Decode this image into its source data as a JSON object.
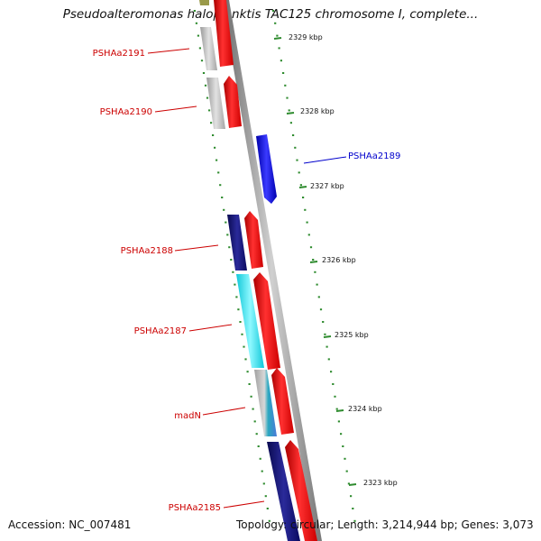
{
  "title": "Pseudoalteromonas haloplanktis TAC125 chromosome I, complete...",
  "accession": "Accession: NC_007481",
  "topology": "Topology: circular; Length: 3,214,944 bp; Genes: 3,073",
  "colors": {
    "label_red": "#cc0000",
    "label_blue": "#0000cc",
    "tick_green": "#2e8b2e",
    "backbone": "#8c8c8c",
    "forward_gene": "#ff1010",
    "reverse_blue": "#1010ee",
    "gray_gene": "#bdbdbd",
    "navy_gene": "#12127a",
    "cyan_gene": "#20e6f0"
  },
  "genes": [
    {
      "label": "PSHAa2191",
      "strand": "reverse",
      "color": "gray"
    },
    {
      "label": "PSHAa2190",
      "strand": "reverse",
      "color": "gray"
    },
    {
      "label": "PSHAa2189",
      "strand": "forward",
      "color": "blue"
    },
    {
      "label": "PSHAa2188",
      "strand": "reverse",
      "color": "navy"
    },
    {
      "label": "PSHAa2187",
      "strand": "reverse",
      "color": "cyan"
    },
    {
      "label": "madN",
      "strand": "reverse",
      "color": "gray"
    },
    {
      "label": "PSHAa2185",
      "strand": "reverse",
      "color": "navy"
    }
  ],
  "kbp_ticks": [
    "2329 kbp",
    "2328 kbp",
    "2327 kbp",
    "2326 kbp",
    "2325 kbp",
    "2324 kbp",
    "2323 kbp"
  ]
}
